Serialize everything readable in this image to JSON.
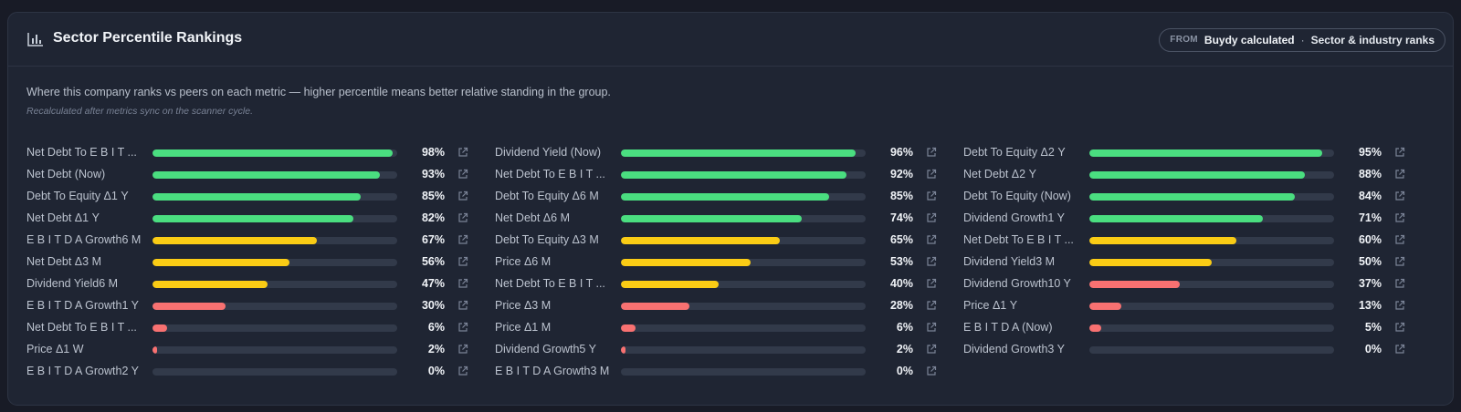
{
  "card": {
    "title": "Sector Percentile Rankings",
    "icon": "bar-chart-icon",
    "source": {
      "from_label": "FROM",
      "name": "Buydy calculated",
      "separator": "·",
      "scope": "Sector & industry ranks"
    },
    "description": "Where this company ranks vs peers on each metric — higher percentile means better relative standing in the group.",
    "note": "Recalculated after metrics sync on the scanner cycle."
  },
  "colors": {
    "high": "#4ade80",
    "mid": "#facc15",
    "low": "#f87171",
    "track": "#323a4a"
  },
  "columns": [
    [
      {
        "label": "Net Debt To E B I T ...",
        "value": 98,
        "display": "98%"
      },
      {
        "label": "Net Debt (Now)",
        "value": 93,
        "display": "93%"
      },
      {
        "label": "Debt To Equity Δ1 Y",
        "value": 85,
        "display": "85%"
      },
      {
        "label": "Net Debt Δ1 Y",
        "value": 82,
        "display": "82%"
      },
      {
        "label": "E B I T D A Growth6 M",
        "value": 67,
        "display": "67%"
      },
      {
        "label": "Net Debt Δ3 M",
        "value": 56,
        "display": "56%"
      },
      {
        "label": "Dividend Yield6 M",
        "value": 47,
        "display": "47%"
      },
      {
        "label": "E B I T D A Growth1 Y",
        "value": 30,
        "display": "30%"
      },
      {
        "label": "Net Debt To E B I T ...",
        "value": 6,
        "display": "6%"
      },
      {
        "label": "Price Δ1 W",
        "value": 2,
        "display": "2%"
      },
      {
        "label": "E B I T D A Growth2 Y",
        "value": 0,
        "display": "0%"
      }
    ],
    [
      {
        "label": "Dividend Yield (Now)",
        "value": 96,
        "display": "96%"
      },
      {
        "label": "Net Debt To E B I T ...",
        "value": 92,
        "display": "92%"
      },
      {
        "label": "Debt To Equity Δ6 M",
        "value": 85,
        "display": "85%"
      },
      {
        "label": "Net Debt Δ6 M",
        "value": 74,
        "display": "74%"
      },
      {
        "label": "Debt To Equity Δ3 M",
        "value": 65,
        "display": "65%"
      },
      {
        "label": "Price Δ6 M",
        "value": 53,
        "display": "53%"
      },
      {
        "label": "Net Debt To E B I T ...",
        "value": 40,
        "display": "40%"
      },
      {
        "label": "Price Δ3 M",
        "value": 28,
        "display": "28%"
      },
      {
        "label": "Price Δ1 M",
        "value": 6,
        "display": "6%"
      },
      {
        "label": "Dividend Growth5 Y",
        "value": 2,
        "display": "2%"
      },
      {
        "label": "E B I T D A Growth3 M",
        "value": 0,
        "display": "0%"
      }
    ],
    [
      {
        "label": "Debt To Equity Δ2 Y",
        "value": 95,
        "display": "95%"
      },
      {
        "label": "Net Debt Δ2 Y",
        "value": 88,
        "display": "88%"
      },
      {
        "label": "Debt To Equity (Now)",
        "value": 84,
        "display": "84%"
      },
      {
        "label": "Dividend Growth1 Y",
        "value": 71,
        "display": "71%"
      },
      {
        "label": "Net Debt To E B I T ...",
        "value": 60,
        "display": "60%"
      },
      {
        "label": "Dividend Yield3 M",
        "value": 50,
        "display": "50%"
      },
      {
        "label": "Dividend Growth10 Y",
        "value": 37,
        "display": "37%"
      },
      {
        "label": "Price Δ1 Y",
        "value": 13,
        "display": "13%"
      },
      {
        "label": "E B I T D A (Now)",
        "value": 5,
        "display": "5%"
      },
      {
        "label": "Dividend Growth3 Y",
        "value": 0,
        "display": "0%"
      }
    ]
  ]
}
